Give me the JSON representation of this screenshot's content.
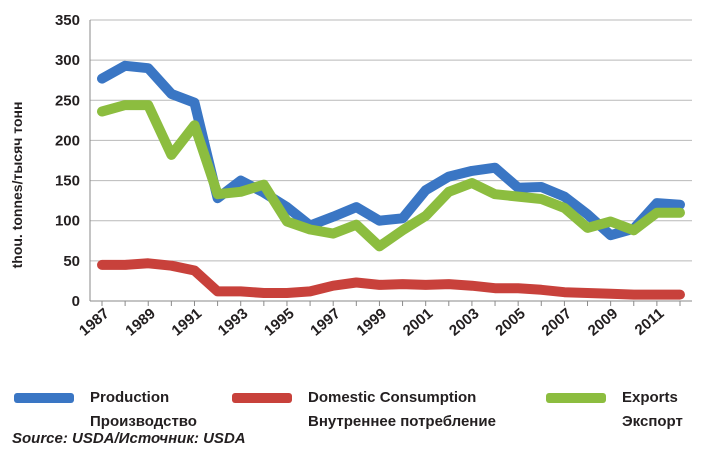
{
  "chart_data": {
    "type": "line",
    "ylabel": "thou. tonnes/тысяч тонн",
    "ylim": [
      0,
      350
    ],
    "yticks": [
      0,
      50,
      100,
      150,
      200,
      250,
      300,
      350
    ],
    "x": [
      1987,
      1988,
      1989,
      1990,
      1991,
      1992,
      1993,
      1994,
      1995,
      1996,
      1997,
      1998,
      1999,
      2000,
      2001,
      2002,
      2003,
      2004,
      2005,
      2006,
      2007,
      2008,
      2009,
      2010,
      2011,
      2012
    ],
    "xticks": [
      "1987",
      "1989",
      "1991",
      "1993",
      "1995",
      "1997",
      "1999",
      "2001",
      "2003",
      "2005",
      "2007",
      "2009",
      "2011"
    ],
    "grid": true,
    "legend_position": "bottom",
    "series": [
      {
        "name_en": "Production",
        "name_ru": "Производство",
        "color": "#3a76c4",
        "values": [
          277,
          293,
          290,
          258,
          247,
          128,
          150,
          135,
          117,
          94,
          105,
          117,
          100,
          103,
          138,
          155,
          162,
          166,
          141,
          142,
          130,
          108,
          82,
          90,
          122,
          120
        ]
      },
      {
        "name_en": "Domestic Consumption",
        "name_ru": "Внутреннее потребление",
        "color": "#c8413b",
        "values": [
          45,
          45,
          47,
          44,
          38,
          12,
          12,
          10,
          10,
          12,
          19,
          23,
          20,
          21,
          20,
          21,
          19,
          16,
          16,
          14,
          11,
          10,
          9,
          8,
          8,
          8
        ]
      },
      {
        "name_en": "Exports",
        "name_ru": "Экспорт",
        "color": "#8cbd3f",
        "values": [
          236,
          244,
          244,
          182,
          219,
          133,
          136,
          145,
          99,
          89,
          84,
          95,
          68,
          88,
          106,
          136,
          147,
          133,
          130,
          127,
          116,
          91,
          99,
          88,
          110,
          110
        ]
      }
    ]
  },
  "source_note": "Source: USDA/Источник: USDA"
}
